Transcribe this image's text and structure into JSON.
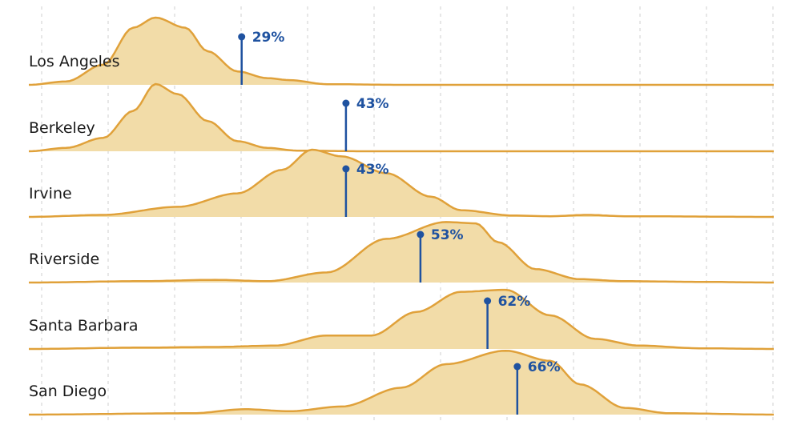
{
  "chart_data": {
    "type": "ridgeline",
    "title": "",
    "xlabel": "",
    "ylabel": "",
    "grid": true,
    "colors": {
      "fill": "#f2dca8",
      "stroke": "#e0a13a",
      "marker": "#1f52a0",
      "grid": "#cfcfcf"
    },
    "series": [
      {
        "name": "Los Angeles",
        "median_label": "29%",
        "median": 29,
        "density": [
          [
            0,
            0
          ],
          [
            5,
            0.05
          ],
          [
            10,
            0.3
          ],
          [
            14,
            0.85
          ],
          [
            17,
            1.0
          ],
          [
            21,
            0.85
          ],
          [
            24,
            0.5
          ],
          [
            28,
            0.2
          ],
          [
            32,
            0.1
          ],
          [
            35,
            0.07
          ],
          [
            40,
            0.01
          ],
          [
            50,
            0
          ],
          [
            100,
            0
          ]
        ]
      },
      {
        "name": "Berkeley",
        "median_label": "43%",
        "median": 43,
        "density": [
          [
            0,
            0
          ],
          [
            5,
            0.05
          ],
          [
            10,
            0.2
          ],
          [
            14,
            0.6
          ],
          [
            17,
            1.0
          ],
          [
            20,
            0.85
          ],
          [
            24,
            0.45
          ],
          [
            28,
            0.15
          ],
          [
            32,
            0.05
          ],
          [
            36,
            0.01
          ],
          [
            45,
            0
          ],
          [
            100,
            0
          ]
        ]
      },
      {
        "name": "Irvine",
        "median_label": "43%",
        "median": 43,
        "density": [
          [
            0,
            0
          ],
          [
            10,
            0.03
          ],
          [
            20,
            0.15
          ],
          [
            28,
            0.35
          ],
          [
            34,
            0.7
          ],
          [
            38,
            1.0
          ],
          [
            42,
            0.9
          ],
          [
            48,
            0.65
          ],
          [
            54,
            0.3
          ],
          [
            58,
            0.1
          ],
          [
            65,
            0.02
          ],
          [
            70,
            0.01
          ],
          [
            75,
            0.03
          ],
          [
            80,
            0.01
          ],
          [
            100,
            0
          ]
        ]
      },
      {
        "name": "Riverside",
        "median_label": "53%",
        "median": 53,
        "density": [
          [
            0,
            0
          ],
          [
            15,
            0.02
          ],
          [
            25,
            0.04
          ],
          [
            32,
            0.02
          ],
          [
            40,
            0.15
          ],
          [
            48,
            0.65
          ],
          [
            56,
            0.9
          ],
          [
            60,
            0.88
          ],
          [
            63,
            0.6
          ],
          [
            68,
            0.2
          ],
          [
            74,
            0.05
          ],
          [
            80,
            0.02
          ],
          [
            90,
            0.01
          ],
          [
            100,
            0
          ]
        ]
      },
      {
        "name": "Santa Barbara",
        "median_label": "62%",
        "median": 62,
        "density": [
          [
            0,
            0
          ],
          [
            15,
            0.02
          ],
          [
            25,
            0.03
          ],
          [
            33,
            0.05
          ],
          [
            40,
            0.2
          ],
          [
            46,
            0.2
          ],
          [
            52,
            0.55
          ],
          [
            58,
            0.85
          ],
          [
            64,
            0.88
          ],
          [
            70,
            0.5
          ],
          [
            76,
            0.15
          ],
          [
            82,
            0.05
          ],
          [
            90,
            0.01
          ],
          [
            100,
            0
          ]
        ]
      },
      {
        "name": "San Diego",
        "median_label": "66%",
        "median": 66,
        "density": [
          [
            0,
            0
          ],
          [
            22,
            0.02
          ],
          [
            29,
            0.08
          ],
          [
            35,
            0.05
          ],
          [
            42,
            0.12
          ],
          [
            50,
            0.4
          ],
          [
            56,
            0.75
          ],
          [
            64,
            0.95
          ],
          [
            70,
            0.8
          ],
          [
            74,
            0.45
          ],
          [
            80,
            0.1
          ],
          [
            86,
            0.02
          ],
          [
            100,
            0
          ]
        ]
      }
    ]
  }
}
